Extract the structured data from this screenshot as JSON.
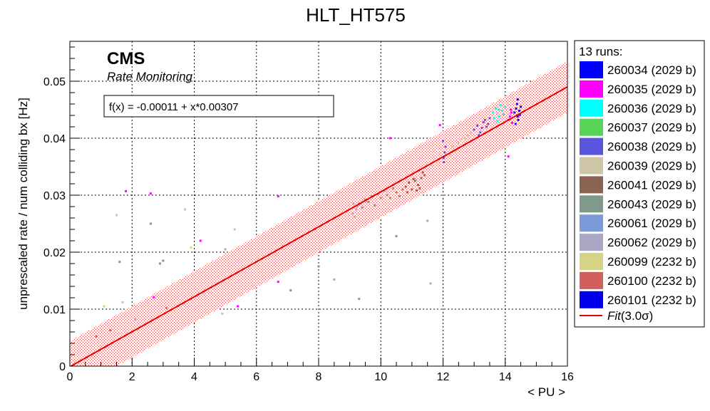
{
  "chart_data": {
    "type": "scatter",
    "title": "HLT_HT575",
    "xlabel": "< PU >",
    "ylabel": "unprescaled rate / num colliding bx [Hz]",
    "xlim": [
      0,
      16
    ],
    "ylim": [
      0,
      0.057
    ],
    "xticks": [
      "0",
      "2",
      "4",
      "6",
      "8",
      "10",
      "12",
      "14",
      "16"
    ],
    "yticks": [
      "0",
      "0.01",
      "0.02",
      "0.03",
      "0.04",
      "0.05"
    ],
    "grid": true,
    "legend_position": "right",
    "cms_label": "CMS",
    "cms_sublabel": "Rate Monitoring",
    "fit_formula": "f(x) = -0.00011 + x*0.00307",
    "fit": {
      "intercept": -0.00011,
      "slope": 0.00307,
      "band_sigma": 3.0,
      "band_halfwidth": 0.0045,
      "color": "#e00000",
      "label": "Fit(3.0σ)",
      "label_italic": "Fit",
      "label_rest": "(3.0σ)"
    },
    "legend_header": "13 runs:",
    "series": [
      {
        "name": "260034 (2029 b)",
        "color": "#0000ff",
        "points": [
          [
            14.3,
            0.0445
          ],
          [
            14.35,
            0.0452
          ],
          [
            14.4,
            0.0438
          ],
          [
            14.45,
            0.0448
          ],
          [
            14.38,
            0.046
          ],
          [
            14.42,
            0.0432
          ],
          [
            14.5,
            0.0455
          ],
          [
            14.33,
            0.0425
          ],
          [
            14.47,
            0.0441
          ],
          [
            14.4,
            0.0468
          ]
        ]
      },
      {
        "name": "260035 (2029 b)",
        "color": "#ff00ff",
        "points": [
          [
            14.15,
            0.0438
          ],
          [
            14.2,
            0.0445
          ],
          [
            14.1,
            0.0432
          ],
          [
            14.22,
            0.0427
          ],
          [
            14.18,
            0.045
          ],
          [
            1.8,
            0.0307
          ],
          [
            2.6,
            0.0303
          ],
          [
            4.2,
            0.022
          ],
          [
            5.4,
            0.0105
          ],
          [
            6.7,
            0.0298
          ],
          [
            11.9,
            0.0423
          ],
          [
            10.3,
            0.04
          ],
          [
            14.1,
            0.0368
          ],
          [
            6.7,
            0.0148
          ],
          [
            2.7,
            0.0121
          ]
        ]
      },
      {
        "name": "260036 (2029 b)",
        "color": "#00ffff",
        "points": [
          [
            13.6,
            0.0445
          ],
          [
            13.7,
            0.0452
          ],
          [
            13.8,
            0.0438
          ],
          [
            13.9,
            0.0448
          ],
          [
            14.0,
            0.0455
          ],
          [
            13.75,
            0.043
          ],
          [
            13.85,
            0.0458
          ],
          [
            13.65,
            0.0435
          ],
          [
            13.95,
            0.0442
          ],
          [
            13.8,
            0.045
          ]
        ]
      },
      {
        "name": "260037 (2029 b)",
        "color": "#55d455",
        "points": []
      },
      {
        "name": "260038 (2029 b)",
        "color": "#5a55dd",
        "points": [
          [
            13.0,
            0.0415
          ],
          [
            13.1,
            0.0422
          ],
          [
            13.2,
            0.041
          ],
          [
            13.3,
            0.0428
          ],
          [
            13.4,
            0.042
          ],
          [
            13.5,
            0.0435
          ],
          [
            13.15,
            0.0405
          ],
          [
            13.25,
            0.0418
          ],
          [
            13.35,
            0.0432
          ],
          [
            13.45,
            0.0425
          ],
          [
            12.0,
            0.0395
          ],
          [
            12.05,
            0.0375
          ],
          [
            12.02,
            0.0365
          ],
          [
            12.08,
            0.0385
          ],
          [
            12.03,
            0.0358
          ]
        ]
      },
      {
        "name": "260039 (2029 b)",
        "color": "#cdc5a5",
        "points": [
          [
            12.3,
            0.0385
          ],
          [
            12.5,
            0.0392
          ],
          [
            12.7,
            0.04
          ],
          [
            12.9,
            0.041
          ],
          [
            12.4,
            0.0378
          ],
          [
            12.6,
            0.0398
          ],
          [
            12.8,
            0.0405
          ],
          [
            12.2,
            0.0372
          ],
          [
            1.5,
            0.0265
          ],
          [
            3.7,
            0.0275
          ],
          [
            5.3,
            0.024
          ],
          [
            1.7,
            0.0112
          ],
          [
            4.9,
            0.0092
          ]
        ]
      },
      {
        "name": "260041 (2029 b)",
        "color": "#8b6352",
        "points": [
          [
            10.8,
            0.0315
          ],
          [
            10.9,
            0.0322
          ],
          [
            11.0,
            0.031
          ],
          [
            11.1,
            0.0325
          ],
          [
            11.2,
            0.0318
          ],
          [
            11.3,
            0.033
          ],
          [
            11.4,
            0.0335
          ],
          [
            10.85,
            0.0305
          ],
          [
            11.05,
            0.0328
          ],
          [
            11.25,
            0.0312
          ],
          [
            11.35,
            0.034
          ],
          [
            11.15,
            0.0308
          ]
        ]
      },
      {
        "name": "260043 (2029 b)",
        "color": "#7f9a88",
        "points": [
          [
            9.3,
            0.0285
          ],
          [
            9.5,
            0.0292
          ],
          [
            9.7,
            0.0298
          ],
          [
            9.9,
            0.0302
          ],
          [
            10.1,
            0.0308
          ],
          [
            10.3,
            0.0295
          ],
          [
            10.5,
            0.0305
          ],
          [
            10.7,
            0.031
          ],
          [
            9.4,
            0.0278
          ],
          [
            9.6,
            0.0288
          ],
          [
            9.8,
            0.0282
          ],
          [
            10.0,
            0.0295
          ],
          [
            10.2,
            0.03
          ],
          [
            10.4,
            0.0312
          ],
          [
            10.6,
            0.0298
          ],
          [
            2.6,
            0.025
          ],
          [
            2.9,
            0.018
          ],
          [
            3.0,
            0.0185
          ],
          [
            1.6,
            0.0183
          ],
          [
            10.5,
            0.0228
          ],
          [
            9.3,
            0.0118
          ],
          [
            7.1,
            0.0133
          ],
          [
            8.0,
            0.0175
          ]
        ]
      },
      {
        "name": "260061 (2029 b)",
        "color": "#7a9ad8",
        "points": []
      },
      {
        "name": "260062 (2029 b)",
        "color": "#aaa6c4",
        "points": [
          [
            9.1,
            0.0268
          ],
          [
            9.2,
            0.0275
          ],
          [
            9.15,
            0.0262
          ],
          [
            9.25,
            0.028
          ],
          [
            9.12,
            0.0285
          ],
          [
            11.6,
            0.0145
          ],
          [
            11.5,
            0.0255
          ],
          [
            8.5,
            0.0152
          ],
          [
            5.0,
            0.0205
          ],
          [
            2.1,
            0.0082
          ]
        ]
      },
      {
        "name": "260099 (2232 b)",
        "color": "#d6d385",
        "points": [
          [
            3.9,
            0.0208
          ],
          [
            1.1,
            0.0105
          ]
        ]
      },
      {
        "name": "260100 (2232 b)",
        "color": "#d35e5e",
        "points": [
          [
            0.85,
            0.0052
          ],
          [
            1.3,
            0.0063
          ],
          [
            3.1,
            0.0102
          ]
        ]
      },
      {
        "name": "260101 (2232 b)",
        "color": "#0000ee",
        "points": []
      }
    ]
  }
}
